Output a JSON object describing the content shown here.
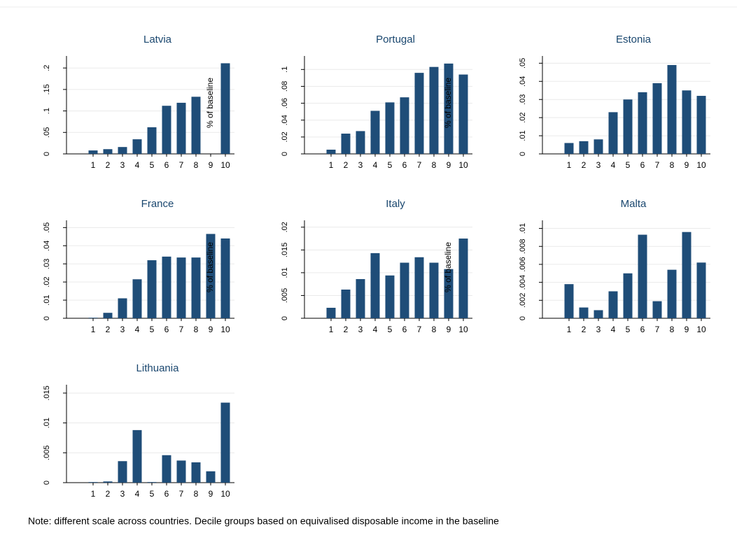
{
  "chart_data": [
    {
      "type": "bar",
      "title": "Latvia",
      "ylabel": "% of baseline",
      "color": "#1f4d78",
      "grid": true,
      "categories": [
        "1",
        "2",
        "3",
        "4",
        "5",
        "6",
        "7",
        "8",
        "9",
        "10"
      ],
      "values": [
        0.008,
        0.011,
        0.016,
        0.034,
        0.062,
        0.112,
        0.119,
        0.133,
        0,
        0.211
      ],
      "ylim": [
        0,
        0.228
      ],
      "yticks": [
        0,
        {
          "value": 0.05,
          "label": ".05"
        },
        {
          "value": 0.1,
          "label": ".1"
        },
        {
          "value": 0.15,
          "label": ".15"
        },
        {
          "value": 0.2,
          "label": ".2"
        }
      ]
    },
    {
      "type": "bar",
      "title": "Portugal",
      "ylabel": "% of baseline",
      "color": "#1f4d78",
      "grid": true,
      "categories": [
        "1",
        "2",
        "3",
        "4",
        "5",
        "6",
        "7",
        "8",
        "9",
        "10"
      ],
      "values": [
        0.005,
        0.024,
        0.027,
        0.051,
        0.061,
        0.067,
        0.096,
        0.103,
        0.107,
        0.094
      ],
      "ylim": [
        0,
        0.116
      ],
      "yticks": [
        0,
        {
          "value": 0.02,
          "label": ".02"
        },
        {
          "value": 0.04,
          "label": ".04"
        },
        {
          "value": 0.06,
          "label": ".06"
        },
        {
          "value": 0.08,
          "label": ".08"
        },
        {
          "value": 0.1,
          "label": ".1"
        }
      ]
    },
    {
      "type": "bar",
      "title": "Estonia",
      "color": "#1f4d78",
      "grid": true,
      "categories": [
        "1",
        "2",
        "3",
        "4",
        "5",
        "6",
        "7",
        "8",
        "9",
        "10"
      ],
      "values": [
        0.006,
        0.007,
        0.008,
        0.023,
        0.03,
        0.034,
        0.039,
        0.049,
        0.035,
        0.032
      ],
      "ylim": [
        0,
        0.054
      ],
      "yticks": [
        0,
        {
          "value": 0.01,
          "label": ".01"
        },
        {
          "value": 0.02,
          "label": ".02"
        },
        {
          "value": 0.03,
          "label": ".03"
        },
        {
          "value": 0.04,
          "label": ".04"
        },
        {
          "value": 0.05,
          "label": ".05"
        }
      ]
    },
    {
      "type": "bar",
      "title": "France",
      "ylabel": "% of baseline",
      "color": "#1f4d78",
      "grid": true,
      "categories": [
        "1",
        "2",
        "3",
        "4",
        "5",
        "6",
        "7",
        "8",
        "9",
        "10"
      ],
      "values": [
        0.0003,
        0.003,
        0.011,
        0.0215,
        0.032,
        0.034,
        0.0335,
        0.0335,
        0.0465,
        0.044
      ],
      "ylim": [
        0,
        0.054
      ],
      "yticks": [
        0,
        {
          "value": 0.01,
          "label": ".01"
        },
        {
          "value": 0.02,
          "label": ".02"
        },
        {
          "value": 0.03,
          "label": ".03"
        },
        {
          "value": 0.04,
          "label": ".04"
        },
        {
          "value": 0.05,
          "label": ".05"
        }
      ]
    },
    {
      "type": "bar",
      "title": "Italy",
      "ylabel": "% of baseline",
      "color": "#1f4d78",
      "grid": true,
      "categories": [
        "1",
        "2",
        "3",
        "4",
        "5",
        "6",
        "7",
        "8",
        "9",
        "10"
      ],
      "values": [
        0.0023,
        0.0063,
        0.0086,
        0.0143,
        0.0094,
        0.0122,
        0.0134,
        0.0122,
        0.0108,
        0.0175
      ],
      "ylim": [
        0,
        0.0215
      ],
      "yticks": [
        0,
        {
          "value": 0.005,
          "label": ".005"
        },
        {
          "value": 0.01,
          "label": ".01"
        },
        {
          "value": 0.015,
          "label": ".015"
        },
        {
          "value": 0.02,
          "label": ".02"
        }
      ]
    },
    {
      "type": "bar",
      "title": "Malta",
      "color": "#1f4d78",
      "grid": true,
      "categories": [
        "1",
        "2",
        "3",
        "4",
        "5",
        "6",
        "7",
        "8",
        "9",
        "10"
      ],
      "values": [
        0.0038,
        0.0012,
        0.0009,
        0.003,
        0.005,
        0.0093,
        0.0019,
        0.0054,
        0.0096,
        0.0062
      ],
      "ylim": [
        0,
        0.0109
      ],
      "yticks": [
        0,
        {
          "value": 0.002,
          "label": ".002"
        },
        {
          "value": 0.004,
          "label": ".004"
        },
        {
          "value": 0.006,
          "label": ".006"
        },
        {
          "value": 0.008,
          "label": ".008"
        },
        {
          "value": 0.01,
          "label": ".01"
        }
      ]
    },
    {
      "type": "bar",
      "title": "Lithuania",
      "color": "#1f4d78",
      "grid": true,
      "categories": [
        "1",
        "2",
        "3",
        "4",
        "5",
        "6",
        "7",
        "8",
        "9",
        "10"
      ],
      "values": [
        0.0001,
        0.0002,
        0.0036,
        0.0088,
        0.0001,
        0.0046,
        0.0037,
        0.0034,
        0.0019,
        0.0134
      ],
      "ylim": [
        0,
        0.0164
      ],
      "yticks": [
        0,
        {
          "value": 0.005,
          "label": ".005"
        },
        {
          "value": 0.01,
          "label": ".01"
        },
        {
          "value": 0.015,
          "label": ".015"
        }
      ]
    }
  ],
  "note": "Note: different scale across countries. Decile groups based on equivalised disposable income in the baseline"
}
